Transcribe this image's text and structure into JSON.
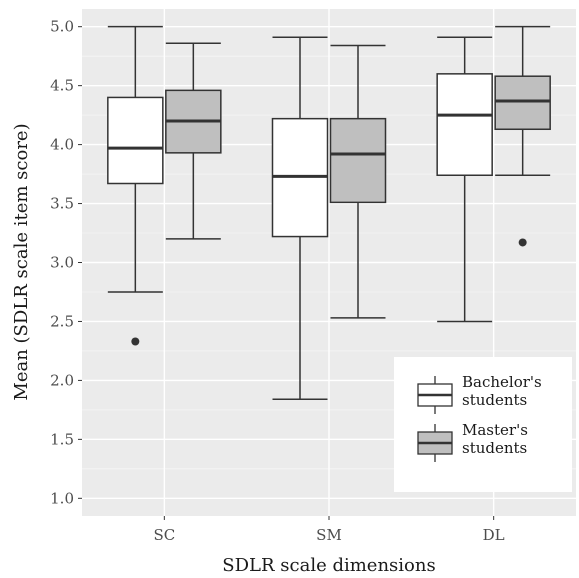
{
  "chart_data": {
    "type": "boxplot",
    "xlabel": "SDLR scale dimensions",
    "ylabel": "Mean (SDLR scale item score)",
    "ylim": [
      0.85,
      5.15
    ],
    "yticks": [
      1.0,
      1.5,
      2.0,
      2.5,
      3.0,
      3.5,
      4.0,
      4.5,
      5.0
    ],
    "ytick_labels": [
      "1.0",
      "1.5",
      "2.0",
      "2.5",
      "3.0",
      "3.5",
      "4.0",
      "4.5",
      "5.0"
    ],
    "categories": [
      "SC",
      "SM",
      "DL"
    ],
    "grid": true,
    "legend_position": "bottom-right",
    "series": [
      {
        "name": "Bachelor's students",
        "fill": "#ffffff",
        "boxes": [
          {
            "whisker_low": 2.75,
            "q1": 3.67,
            "median": 3.97,
            "q3": 4.4,
            "whisker_high": 5.0,
            "outliers": [
              2.33
            ]
          },
          {
            "whisker_low": 1.84,
            "q1": 3.22,
            "median": 3.73,
            "q3": 4.22,
            "whisker_high": 4.91,
            "outliers": []
          },
          {
            "whisker_low": 2.5,
            "q1": 3.74,
            "median": 4.25,
            "q3": 4.6,
            "whisker_high": 4.91,
            "outliers": []
          }
        ]
      },
      {
        "name": "Master's students",
        "fill": "#bfbfbf",
        "boxes": [
          {
            "whisker_low": 3.2,
            "q1": 3.93,
            "median": 4.2,
            "q3": 4.46,
            "whisker_high": 4.86,
            "outliers": []
          },
          {
            "whisker_low": 2.53,
            "q1": 3.51,
            "median": 3.92,
            "q3": 4.22,
            "whisker_high": 4.84,
            "outliers": []
          },
          {
            "whisker_low": 3.74,
            "q1": 4.13,
            "median": 4.37,
            "q3": 4.58,
            "whisker_high": 5.0,
            "outliers": [
              3.17
            ]
          }
        ]
      }
    ],
    "legend": [
      {
        "label_lines": [
          "Bachelor's",
          "students"
        ],
        "fill": "#ffffff"
      },
      {
        "label_lines": [
          "Master's",
          "students"
        ],
        "fill": "#bfbfbf"
      }
    ]
  },
  "colors": {
    "panel_background": "#ebebeb",
    "grid_major": "#ffffff",
    "box_stroke": "#333333",
    "outlier": "#333333"
  }
}
